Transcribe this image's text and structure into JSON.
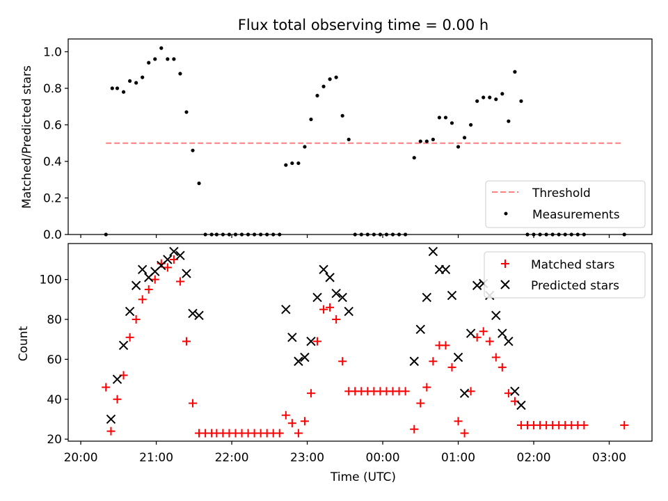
{
  "chart_data": [
    {
      "type": "scatter",
      "title": "Flux total observing time = 0.00 h",
      "xlabel": "",
      "ylabel": "Matched/Predicted stars",
      "ylim": [
        0,
        1.07
      ],
      "yticks": [
        0.0,
        0.2,
        0.4,
        0.6,
        0.8,
        1.0
      ],
      "ytick_labels": [
        "0.0",
        "0.2",
        "0.4",
        "0.6",
        "0.8",
        "1.0"
      ],
      "xlim": [
        "20:00",
        "03:30"
      ],
      "x_tick_labels_shown": false,
      "legend_position": "lower right",
      "threshold": {
        "name": "Threshold",
        "value": 0.5,
        "x_start": "20:20",
        "x_end": "03:10",
        "color": "#ff7f7f",
        "style": "dashed"
      },
      "series": [
        {
          "name": "Measurements",
          "marker": "dot",
          "color": "#000000",
          "points": [
            [
              "20:20",
              0.0
            ],
            [
              "20:25",
              0.8
            ],
            [
              "20:29",
              0.8
            ],
            [
              "20:34",
              0.78
            ],
            [
              "20:39",
              0.84
            ],
            [
              "20:44",
              0.83
            ],
            [
              "20:49",
              0.86
            ],
            [
              "20:54",
              0.94
            ],
            [
              "20:59",
              0.96
            ],
            [
              "21:04",
              1.02
            ],
            [
              "21:09",
              0.96
            ],
            [
              "21:14",
              0.96
            ],
            [
              "21:19",
              0.88
            ],
            [
              "21:24",
              0.67
            ],
            [
              "21:29",
              0.46
            ],
            [
              "21:34",
              0.28
            ],
            [
              "21:39",
              0.0
            ],
            [
              "21:44",
              0.0
            ],
            [
              "21:48",
              0.0
            ],
            [
              "21:53",
              0.0
            ],
            [
              "21:58",
              0.0
            ],
            [
              "22:03",
              0.0
            ],
            [
              "22:08",
              0.0
            ],
            [
              "22:13",
              0.0
            ],
            [
              "22:18",
              0.0
            ],
            [
              "22:23",
              0.0
            ],
            [
              "22:28",
              0.0
            ],
            [
              "22:33",
              0.0
            ],
            [
              "22:38",
              0.0
            ],
            [
              "22:43",
              0.38
            ],
            [
              "22:48",
              0.39
            ],
            [
              "22:53",
              0.39
            ],
            [
              "22:58",
              0.48
            ],
            [
              "23:03",
              0.63
            ],
            [
              "23:08",
              0.76
            ],
            [
              "23:13",
              0.81
            ],
            [
              "23:18",
              0.85
            ],
            [
              "23:23",
              0.86
            ],
            [
              "23:28",
              0.65
            ],
            [
              "23:33",
              0.52
            ],
            [
              "23:38",
              0.0
            ],
            [
              "23:43",
              0.0
            ],
            [
              "23:48",
              0.0
            ],
            [
              "23:53",
              0.0
            ],
            [
              "23:58",
              0.0
            ],
            [
              "00:03",
              0.0
            ],
            [
              "00:08",
              0.0
            ],
            [
              "00:13",
              0.0
            ],
            [
              "00:18",
              0.0
            ],
            [
              "00:25",
              0.42
            ],
            [
              "00:30",
              0.51
            ],
            [
              "00:35",
              0.51
            ],
            [
              "00:40",
              0.52
            ],
            [
              "00:45",
              0.64
            ],
            [
              "00:50",
              0.64
            ],
            [
              "00:55",
              0.61
            ],
            [
              "01:00",
              0.48
            ],
            [
              "01:05",
              0.53
            ],
            [
              "01:10",
              0.6
            ],
            [
              "01:15",
              0.73
            ],
            [
              "01:20",
              0.75
            ],
            [
              "01:25",
              0.75
            ],
            [
              "01:30",
              0.74
            ],
            [
              "01:35",
              0.77
            ],
            [
              "01:40",
              0.62
            ],
            [
              "01:45",
              0.89
            ],
            [
              "01:50",
              0.73
            ],
            [
              "01:55",
              0.0
            ],
            [
              "02:00",
              0.0
            ],
            [
              "02:05",
              0.0
            ],
            [
              "02:10",
              0.0
            ],
            [
              "02:15",
              0.0
            ],
            [
              "02:20",
              0.0
            ],
            [
              "02:25",
              0.0
            ],
            [
              "02:30",
              0.0
            ],
            [
              "02:35",
              0.0
            ],
            [
              "02:40",
              0.0
            ],
            [
              "03:12",
              0.0
            ]
          ]
        }
      ]
    },
    {
      "type": "scatter",
      "title": "",
      "xlabel": "Time (UTC)",
      "ylabel": "Count",
      "ylim": [
        19,
        118
      ],
      "yticks": [
        20,
        40,
        60,
        80,
        100
      ],
      "ytick_labels": [
        "20",
        "40",
        "60",
        "80",
        "100"
      ],
      "xlim": [
        "20:00",
        "03:30"
      ],
      "xticks": [
        "20:00",
        "21:00",
        "22:00",
        "23:00",
        "00:00",
        "01:00",
        "02:00",
        "03:00"
      ],
      "legend_position": "upper right",
      "series": [
        {
          "name": "Matched stars",
          "marker": "plus",
          "color": "#ff0000",
          "points": [
            [
              "20:20",
              46
            ],
            [
              "20:24",
              24
            ],
            [
              "20:29",
              40
            ],
            [
              "20:34",
              52
            ],
            [
              "20:39",
              71
            ],
            [
              "20:44",
              80
            ],
            [
              "20:49",
              90
            ],
            [
              "20:54",
              95
            ],
            [
              "20:59",
              100
            ],
            [
              "21:04",
              108
            ],
            [
              "21:09",
              106
            ],
            [
              "21:14",
              110
            ],
            [
              "21:19",
              99
            ],
            [
              "21:24",
              69
            ],
            [
              "21:29",
              38
            ],
            [
              "21:34",
              23
            ],
            [
              "21:39",
              23
            ],
            [
              "21:44",
              23
            ],
            [
              "21:48",
              23
            ],
            [
              "21:53",
              23
            ],
            [
              "21:58",
              23
            ],
            [
              "22:03",
              23
            ],
            [
              "22:08",
              23
            ],
            [
              "22:13",
              23
            ],
            [
              "22:18",
              23
            ],
            [
              "22:23",
              23
            ],
            [
              "22:28",
              23
            ],
            [
              "22:33",
              23
            ],
            [
              "22:38",
              23
            ],
            [
              "22:43",
              32
            ],
            [
              "22:48",
              28
            ],
            [
              "22:53",
              23
            ],
            [
              "22:58",
              29
            ],
            [
              "23:03",
              43
            ],
            [
              "23:08",
              69
            ],
            [
              "23:13",
              85
            ],
            [
              "23:18",
              86
            ],
            [
              "23:23",
              80
            ],
            [
              "23:28",
              59
            ],
            [
              "23:33",
              44
            ],
            [
              "23:38",
              44
            ],
            [
              "23:43",
              44
            ],
            [
              "23:48",
              44
            ],
            [
              "23:53",
              44
            ],
            [
              "23:58",
              44
            ],
            [
              "00:03",
              44
            ],
            [
              "00:08",
              44
            ],
            [
              "00:13",
              44
            ],
            [
              "00:18",
              44
            ],
            [
              "00:25",
              25
            ],
            [
              "00:30",
              38
            ],
            [
              "00:35",
              46
            ],
            [
              "00:40",
              59
            ],
            [
              "00:45",
              67
            ],
            [
              "00:50",
              67
            ],
            [
              "00:55",
              56
            ],
            [
              "01:00",
              29
            ],
            [
              "01:05",
              23
            ],
            [
              "01:10",
              44
            ],
            [
              "01:15",
              71
            ],
            [
              "01:20",
              74
            ],
            [
              "01:25",
              69
            ],
            [
              "01:30",
              61
            ],
            [
              "01:35",
              56
            ],
            [
              "01:40",
              43
            ],
            [
              "01:45",
              39
            ],
            [
              "01:50",
              27
            ],
            [
              "01:55",
              27
            ],
            [
              "02:00",
              27
            ],
            [
              "02:05",
              27
            ],
            [
              "02:10",
              27
            ],
            [
              "02:15",
              27
            ],
            [
              "02:20",
              27
            ],
            [
              "02:25",
              27
            ],
            [
              "02:30",
              27
            ],
            [
              "02:35",
              27
            ],
            [
              "02:40",
              27
            ],
            [
              "03:12",
              27
            ]
          ]
        },
        {
          "name": "Predicted stars",
          "marker": "x",
          "color": "#000000",
          "points": [
            [
              "20:24",
              30
            ],
            [
              "20:29",
              50
            ],
            [
              "20:34",
              67
            ],
            [
              "20:39",
              84
            ],
            [
              "20:44",
              97
            ],
            [
              "20:49",
              105
            ],
            [
              "20:54",
              101
            ],
            [
              "20:59",
              104
            ],
            [
              "21:04",
              107
            ],
            [
              "21:09",
              110
            ],
            [
              "21:14",
              114
            ],
            [
              "21:19",
              112
            ],
            [
              "21:24",
              103
            ],
            [
              "21:29",
              83
            ],
            [
              "21:34",
              82
            ],
            [
              "22:43",
              85
            ],
            [
              "22:48",
              71
            ],
            [
              "22:53",
              59
            ],
            [
              "22:58",
              61
            ],
            [
              "23:03",
              69
            ],
            [
              "23:08",
              91
            ],
            [
              "23:13",
              105
            ],
            [
              "23:18",
              101
            ],
            [
              "23:23",
              93
            ],
            [
              "23:28",
              91
            ],
            [
              "23:33",
              84
            ],
            [
              "00:25",
              59
            ],
            [
              "00:30",
              75
            ],
            [
              "00:35",
              91
            ],
            [
              "00:40",
              114
            ],
            [
              "00:45",
              105
            ],
            [
              "00:50",
              105
            ],
            [
              "00:55",
              92
            ],
            [
              "01:00",
              61
            ],
            [
              "01:05",
              43
            ],
            [
              "01:10",
              73
            ],
            [
              "01:15",
              97
            ],
            [
              "01:20",
              98
            ],
            [
              "01:25",
              92
            ],
            [
              "01:30",
              82
            ],
            [
              "01:35",
              73
            ],
            [
              "01:40",
              69
            ],
            [
              "01:45",
              44
            ],
            [
              "01:50",
              37
            ]
          ]
        }
      ]
    }
  ]
}
